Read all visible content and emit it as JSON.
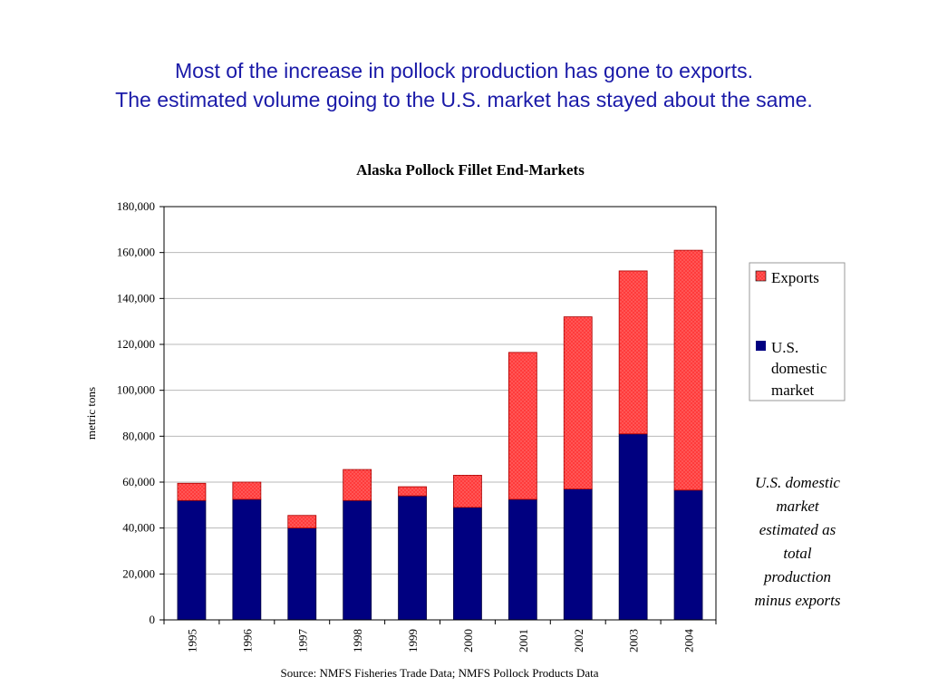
{
  "headline": {
    "line1": "Most of the increase in pollock production has gone to exports.",
    "line2": "The estimated volume going to the U.S. market has stayed about the same."
  },
  "colors": {
    "headline": "#1a1aa8",
    "exports": "#ff3b3b",
    "domestic": "#000080"
  },
  "chart_data": {
    "type": "bar",
    "stacked": true,
    "title": "Alaska Pollock Fillet End-Markets",
    "ylabel": "metric tons",
    "xlabel": "",
    "ylim": [
      0,
      180000
    ],
    "yticks": [
      0,
      20000,
      40000,
      60000,
      80000,
      100000,
      120000,
      140000,
      160000,
      180000
    ],
    "ytick_labels": [
      "0",
      "20,000",
      "40,000",
      "60,000",
      "80,000",
      "100,000",
      "120,000",
      "140,000",
      "160,000",
      "180,000"
    ],
    "grid": true,
    "legend_position": "right",
    "categories": [
      "1995",
      "1996",
      "1997",
      "1998",
      "1999",
      "2000",
      "2001",
      "2002",
      "2003",
      "2004"
    ],
    "series": [
      {
        "name": "U.S. domestic market",
        "color": "#000080",
        "values": [
          52000,
          52500,
          40000,
          52000,
          54000,
          49000,
          52500,
          57000,
          81000,
          56500
        ]
      },
      {
        "name": "Exports",
        "color": "#ff3b3b",
        "values": [
          7500,
          7500,
          5500,
          13500,
          4000,
          14000,
          64000,
          75000,
          71000,
          104500
        ]
      }
    ],
    "legend": {
      "exports": "Exports",
      "domestic": [
        "U.S.",
        "domestic",
        "market"
      ]
    }
  },
  "note": [
    "U.S. domestic",
    "market",
    "estimated as",
    "total",
    "production",
    "minus exports"
  ],
  "source": "Source:  NMFS Fisheries Trade Data; NMFS Pollock Products Data"
}
